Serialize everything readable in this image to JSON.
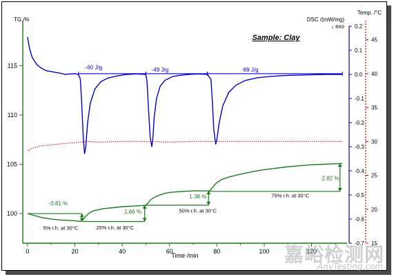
{
  "chart_data": {
    "type": "line",
    "title": "Sample: Clay",
    "xlabel": "Time /min",
    "xlim": [
      -2,
      135
    ],
    "x_ticks": [
      0,
      20,
      40,
      60,
      80,
      100,
      120
    ],
    "axes": {
      "tg": {
        "label": "TG /%",
        "ylim": [
          97,
          119
        ],
        "ticks": [
          100,
          105,
          110,
          115
        ],
        "color": "#1a7a1a"
      },
      "dsc": {
        "label_line1": "DSC /(mW/mg)",
        "label_line2": "↓ exo",
        "ylim": [
          -0.7,
          0.2
        ],
        "ticks": [
          0.2,
          0.1,
          0.0,
          -0.1,
          -0.2,
          -0.3,
          -0.4,
          -0.5,
          -0.6,
          -0.7
        ],
        "color": "#0000cc"
      },
      "temp": {
        "label": "Temp. /°C",
        "ylim": [
          15,
          47
        ],
        "ticks": [
          45,
          40,
          35,
          30,
          25,
          20,
          15
        ],
        "color": "#cc0000"
      }
    },
    "series": [
      {
        "key": "dsc",
        "axis": "dsc",
        "color": "#0000cc",
        "x": [
          0,
          0.8,
          2,
          4,
          6,
          8,
          10,
          12,
          14,
          16,
          18,
          20,
          21.5,
          22.3,
          22.8,
          23.5,
          24.1,
          24.6,
          25.4,
          26.5,
          28.5,
          31,
          34,
          38,
          42,
          46,
          50,
          50.5,
          51,
          51.8,
          52.5,
          53,
          53.5,
          54.5,
          56,
          58,
          61,
          64,
          68,
          72,
          76,
          77.5,
          78,
          78.7,
          79.5,
          80,
          81,
          82.5,
          85,
          88,
          92,
          97,
          103,
          110,
          118,
          126,
          133
        ],
        "y": [
          0.155,
          0.11,
          0.07,
          0.04,
          0.025,
          0.015,
          0.012,
          0.008,
          0.005,
          0.0,
          0.002,
          0.003,
          0.0,
          -0.02,
          -0.1,
          -0.25,
          -0.33,
          -0.3,
          -0.2,
          -0.12,
          -0.06,
          -0.03,
          -0.015,
          -0.006,
          0.0,
          0.002,
          0.0,
          -0.03,
          -0.12,
          -0.26,
          -0.3,
          -0.26,
          -0.18,
          -0.1,
          -0.05,
          -0.025,
          -0.01,
          -0.004,
          0.0,
          0.002,
          0.0,
          -0.02,
          -0.1,
          -0.23,
          -0.29,
          -0.27,
          -0.2,
          -0.13,
          -0.075,
          -0.045,
          -0.025,
          -0.014,
          -0.008,
          -0.004,
          -0.002,
          0.0,
          0.0
        ]
      },
      {
        "key": "temp",
        "axis": "temp",
        "color": "#cc0000",
        "style": "dotted",
        "x": [
          0,
          2,
          5,
          10,
          15,
          20,
          25,
          30,
          40,
          50,
          60,
          70,
          80,
          90,
          100,
          110,
          120,
          133
        ],
        "y": [
          28.6,
          29.0,
          29.3,
          29.5,
          29.7,
          29.8,
          30.0,
          29.9,
          30.0,
          30.0,
          29.9,
          30.0,
          30.0,
          30.0,
          30.0,
          30.0,
          30.0,
          30.0
        ]
      },
      {
        "key": "tg",
        "axis": "tg",
        "color": "#1a7a1a",
        "x": [
          0,
          1,
          3,
          6,
          10,
          14,
          18,
          21,
          22.5,
          23.5,
          24.5,
          26,
          28,
          32,
          36,
          40,
          44,
          48,
          50,
          51,
          52,
          54,
          56,
          58,
          60,
          63,
          66,
          70,
          74,
          77,
          78,
          79,
          80,
          82,
          85,
          90,
          95,
          100,
          105,
          110,
          115,
          120,
          125,
          130,
          133
        ],
        "y": [
          100.0,
          99.95,
          99.8,
          99.6,
          99.45,
          99.35,
          99.3,
          99.25,
          99.2,
          99.4,
          99.7,
          100.05,
          100.3,
          100.5,
          100.6,
          100.7,
          100.75,
          100.8,
          100.85,
          101.1,
          101.4,
          101.7,
          101.9,
          102.05,
          102.15,
          102.2,
          102.25,
          102.3,
          102.3,
          102.3,
          102.6,
          102.9,
          103.15,
          103.45,
          103.7,
          104.0,
          104.25,
          104.45,
          104.6,
          104.75,
          104.85,
          104.95,
          105.0,
          105.05,
          105.08
        ]
      }
    ],
    "annotations": {
      "dsc": [
        {
          "text": "-60 J/g",
          "x": 28,
          "y": 0.022
        },
        {
          "text": "-49 J/g",
          "x": 56,
          "y": 0.012
        },
        {
          "text": "-89 J/g",
          "x": 94,
          "y": 0.012
        }
      ],
      "tg_change": [
        {
          "text": "-0.81 %",
          "x": 13,
          "y": 100.85
        },
        {
          "text": "1.66 %",
          "x": 44.5,
          "y": 100.0
        },
        {
          "text": "1.38 %",
          "x": 72,
          "y": 101.55
        },
        {
          "text": "2.82 %",
          "x": 128,
          "y": 103.4
        }
      ],
      "rh": [
        {
          "text": "5% r.h. at 30°C",
          "x": 14,
          "y": 98.35
        },
        {
          "text": "25% r.h. at 30°C",
          "x": 37,
          "y": 98.4
        },
        {
          "text": "50% r.h. at 30°C",
          "x": 72,
          "y": 100.1
        },
        {
          "text": "75% r.h. at 30°C",
          "x": 111,
          "y": 101.65
        }
      ]
    },
    "step_brackets": [
      {
        "x": 23,
        "y1": 100.0,
        "y2": 99.2,
        "hx0": 0,
        "hx1": 23
      },
      {
        "x": 49.5,
        "y1": 99.2,
        "y2": 100.85,
        "hx0": 23,
        "hx1": 49.5
      },
      {
        "x": 76.5,
        "y1": 100.85,
        "y2": 102.3,
        "hx0": 49.5,
        "hx1": 76.5
      },
      {
        "x": 132,
        "y1": 102.25,
        "y2": 105.1,
        "hx0": 76.5,
        "hx1": 132
      }
    ],
    "grid": false
  },
  "watermark": {
    "main": "嘉峪检测网",
    "sub": "AnyTesting.com"
  }
}
